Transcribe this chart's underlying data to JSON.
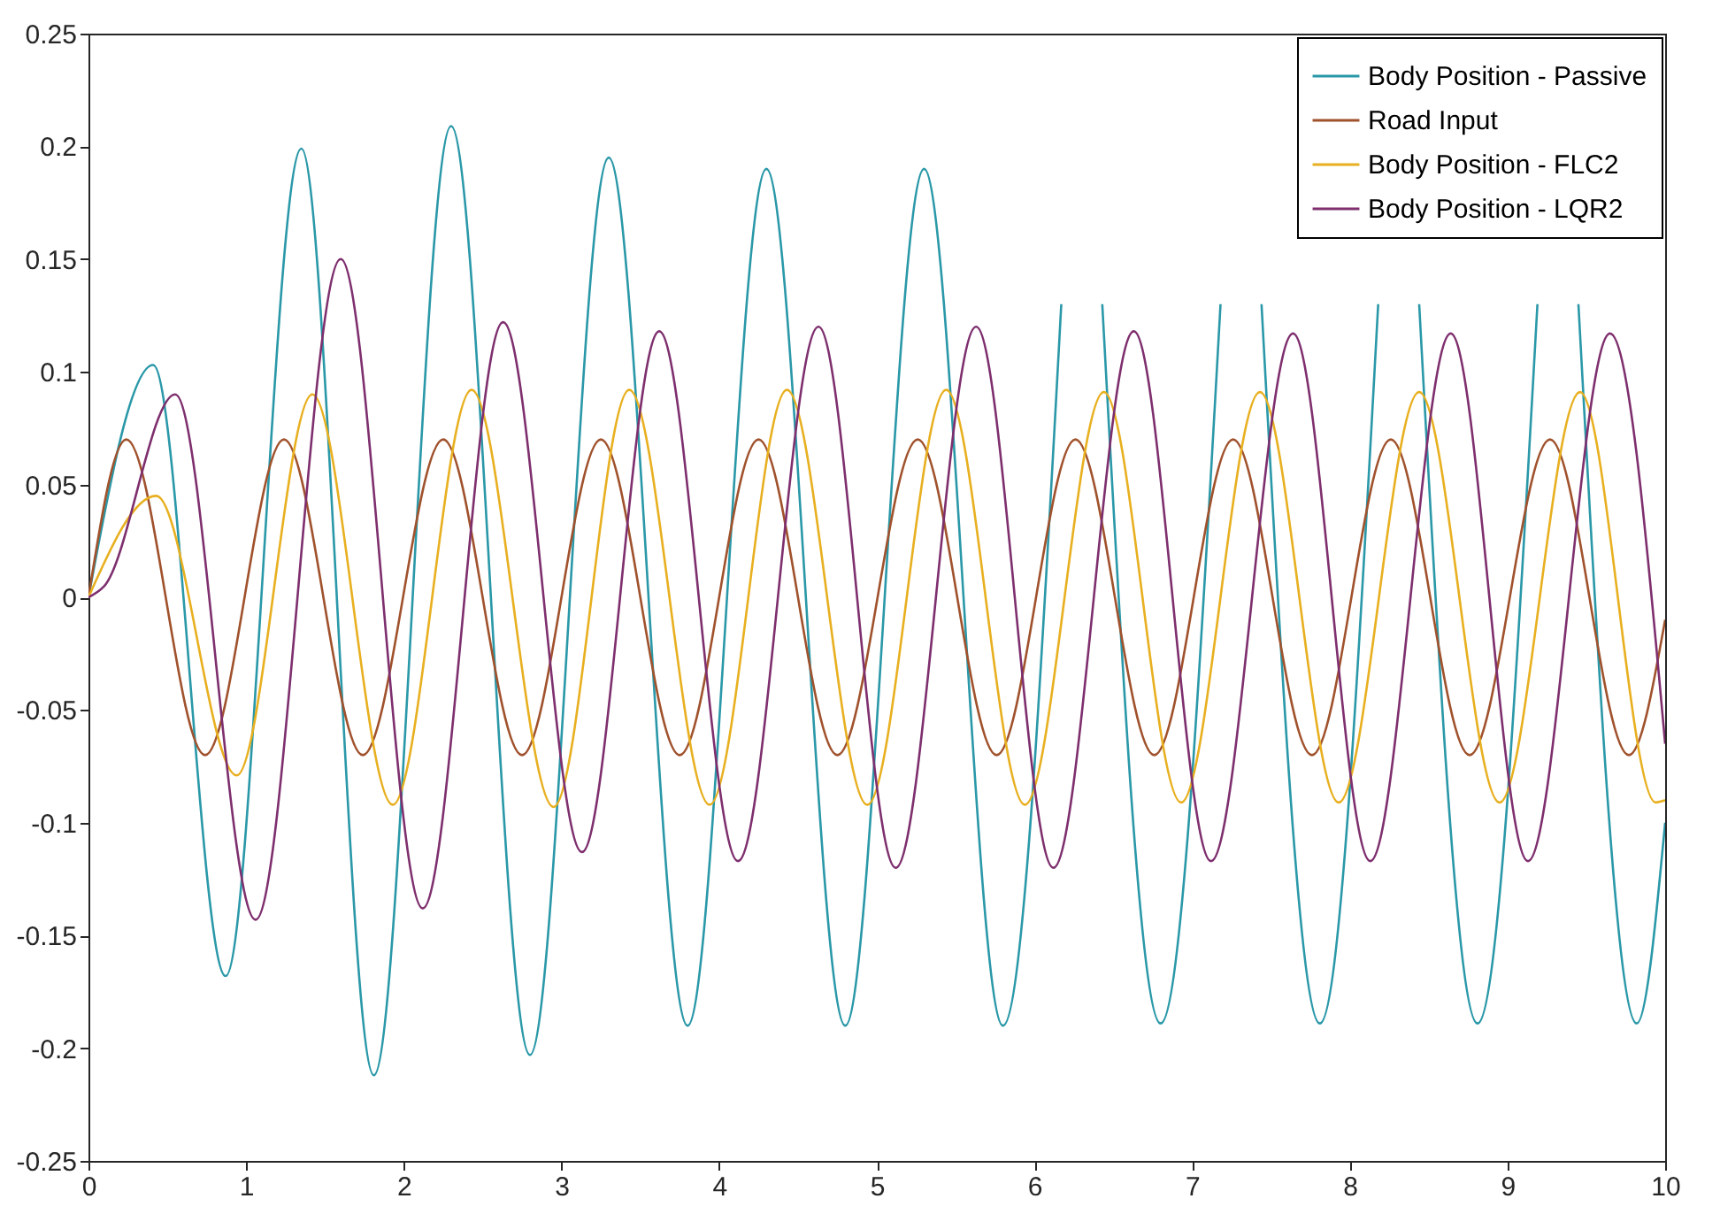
{
  "chart_data": {
    "type": "line",
    "xlim": [
      0,
      10
    ],
    "ylim": [
      -0.25,
      0.25
    ],
    "xticks": [
      0,
      1,
      2,
      3,
      4,
      5,
      6,
      7,
      8,
      9,
      10
    ],
    "yticks": [
      -0.25,
      -0.2,
      -0.15,
      -0.1,
      -0.05,
      0,
      0.05,
      0.1,
      0.15,
      0.2,
      0.25
    ],
    "grid": false,
    "legend": "top right",
    "marker": "none",
    "line_style": "solid",
    "series": [
      {
        "name": "Body Position - Passive",
        "color": "#2a98a8",
        "x": [
          0,
          0.41,
          0.87,
          1.35,
          1.81,
          2.3,
          2.8,
          3.3,
          3.8,
          4.3,
          4.8,
          5.3,
          5.8,
          6.17,
          6.3,
          6.43,
          6.8,
          7.18,
          7.31,
          7.44,
          7.81,
          8.18,
          8.31,
          8.44,
          8.81,
          9.19,
          9.32,
          9.45,
          9.82,
          10
        ],
        "values": [
          0,
          0.103,
          -0.168,
          0.199,
          -0.212,
          0.209,
          -0.203,
          0.195,
          -0.19,
          0.19,
          -0.19,
          0.19,
          -0.19,
          0.13,
          null,
          0.13,
          -0.189,
          0.13,
          null,
          0.13,
          -0.189,
          0.13,
          null,
          0.13,
          -0.189,
          0.13,
          null,
          0.13,
          -0.189,
          -0.1
        ]
      },
      {
        "name": "Road Input",
        "color": "#a0522d",
        "x": [
          0,
          0.24,
          0.74,
          1.24,
          1.74,
          2.25,
          2.75,
          3.25,
          3.75,
          4.25,
          4.75,
          5.26,
          5.76,
          6.26,
          6.76,
          7.26,
          7.76,
          8.26,
          8.76,
          9.27,
          9.77,
          10
        ],
        "values": [
          0,
          0.07,
          -0.07,
          0.07,
          -0.07,
          0.07,
          -0.07,
          0.07,
          -0.07,
          0.07,
          -0.07,
          0.07,
          -0.07,
          0.07,
          -0.07,
          0.07,
          -0.07,
          0.07,
          -0.07,
          0.07,
          -0.07,
          -0.01
        ]
      },
      {
        "name": "Body Position - FLC2",
        "color": "#e8b020",
        "x": [
          0,
          0.43,
          0.94,
          1.42,
          1.93,
          2.43,
          2.95,
          3.43,
          3.94,
          4.43,
          4.94,
          5.44,
          5.94,
          6.44,
          6.93,
          7.43,
          7.93,
          8.44,
          8.95,
          9.46,
          9.94,
          10
        ],
        "values": [
          0,
          0.045,
          -0.079,
          0.09,
          -0.092,
          0.092,
          -0.093,
          0.092,
          -0.092,
          0.092,
          -0.092,
          0.092,
          -0.092,
          0.091,
          -0.091,
          0.091,
          -0.091,
          0.091,
          -0.091,
          0.091,
          -0.091,
          -0.09
        ]
      },
      {
        "name": "Body Position - LQR2",
        "color": "#7e2f6e",
        "x": [
          0,
          0.1,
          0.55,
          1.06,
          1.6,
          2.12,
          2.63,
          3.13,
          3.62,
          4.12,
          4.63,
          5.12,
          5.63,
          6.12,
          6.63,
          7.12,
          7.64,
          8.13,
          8.64,
          9.13,
          9.65,
          10
        ],
        "values": [
          0,
          0.005,
          0.09,
          -0.143,
          0.15,
          -0.138,
          0.122,
          -0.113,
          0.118,
          -0.117,
          0.12,
          -0.12,
          0.12,
          -0.12,
          0.118,
          -0.117,
          0.117,
          -0.117,
          0.117,
          -0.117,
          0.117,
          -0.065
        ]
      }
    ]
  }
}
